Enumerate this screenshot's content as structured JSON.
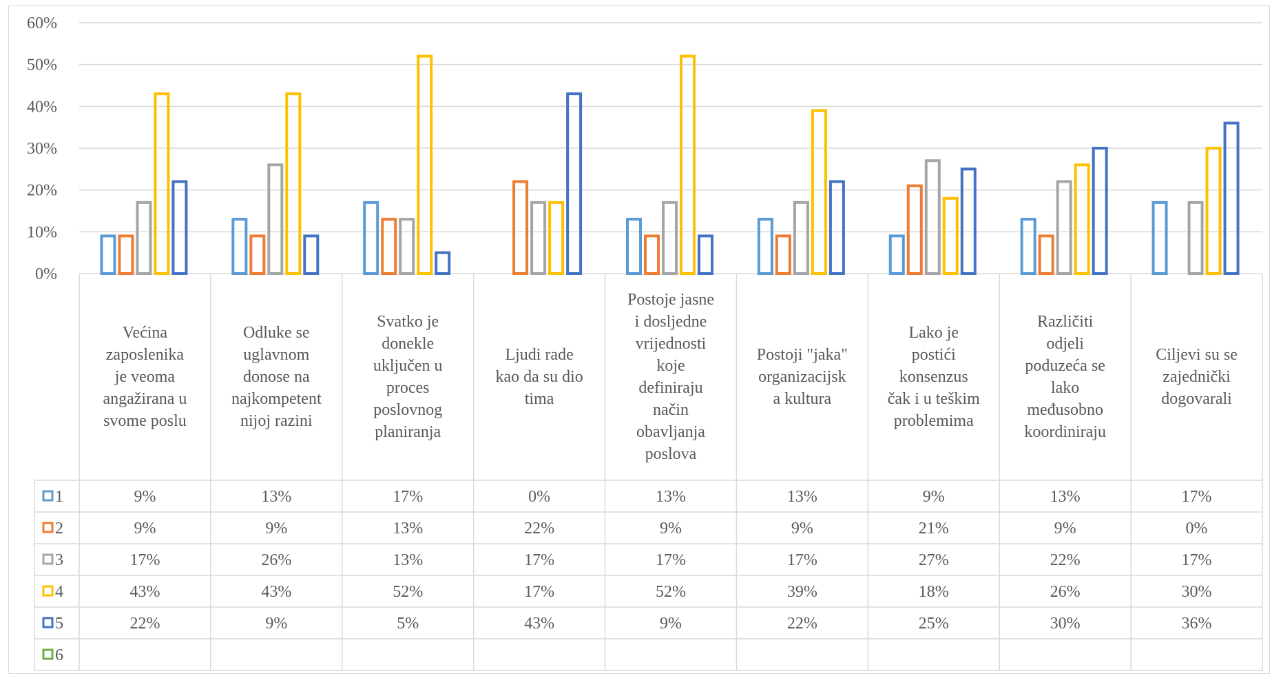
{
  "chart_data": {
    "type": "bar",
    "title": "",
    "xlabel": "",
    "ylabel": "",
    "ylim": [
      0,
      0.6
    ],
    "yticks": [
      "0%",
      "10%",
      "20%",
      "30%",
      "40%",
      "50%",
      "60%"
    ],
    "grid": true,
    "legend": "data-table-left",
    "bar_style": "outline",
    "categories": [
      "Većina\nzaposlenika\nje veoma\nangažirana u\nsvome poslu",
      "Odluke se\nuglavnom\ndonose na\nnajkompetent\nnijoj razini",
      "Svatko je\ndonekle\nuključen u\nproces\nposlovnog\nplaniranja",
      "Ljudi rade\nkao da su dio\ntima",
      "Postoje jasne\ni dosljedne\nvrijednosti\nkoje\ndefiniraju\nnačin\nobavljanja\nposlova",
      "Postoji \"jaka\"\norganizacijsk\na kultura",
      "Lako je\npostići\nkonsenzus\nčak i u teškim\nproblemima",
      "Različiti\nodjeli\npoduzeća se\nlako\nmeđusobno\nkoordiniraju",
      "Ciljevi su se\nzajednički\ndogovarali"
    ],
    "series": [
      {
        "name": "1",
        "color": "#5b9bd5",
        "values": [
          0.09,
          0.13,
          0.17,
          0.0,
          0.13,
          0.13,
          0.09,
          0.13,
          0.17
        ],
        "labels": [
          "9%",
          "13%",
          "17%",
          "0%",
          "13%",
          "13%",
          "9%",
          "13%",
          "17%"
        ]
      },
      {
        "name": "2",
        "color": "#ed7d31",
        "values": [
          0.09,
          0.09,
          0.13,
          0.22,
          0.09,
          0.09,
          0.21,
          0.09,
          0.0
        ],
        "labels": [
          "9%",
          "9%",
          "13%",
          "22%",
          "9%",
          "9%",
          "21%",
          "9%",
          "0%"
        ]
      },
      {
        "name": "3",
        "color": "#a5a5a5",
        "values": [
          0.17,
          0.26,
          0.13,
          0.17,
          0.17,
          0.17,
          0.27,
          0.22,
          0.17
        ],
        "labels": [
          "17%",
          "26%",
          "13%",
          "17%",
          "17%",
          "17%",
          "27%",
          "22%",
          "17%"
        ]
      },
      {
        "name": "4",
        "color": "#ffc000",
        "values": [
          0.43,
          0.43,
          0.52,
          0.17,
          0.52,
          0.39,
          0.18,
          0.26,
          0.3
        ],
        "labels": [
          "43%",
          "43%",
          "52%",
          "17%",
          "52%",
          "39%",
          "18%",
          "26%",
          "30%"
        ]
      },
      {
        "name": "5",
        "color": "#4472c4",
        "values": [
          0.22,
          0.09,
          0.05,
          0.43,
          0.09,
          0.22,
          0.25,
          0.3,
          0.36
        ],
        "labels": [
          "22%",
          "9%",
          "5%",
          "43%",
          "9%",
          "22%",
          "25%",
          "30%",
          "36%"
        ]
      },
      {
        "name": "6",
        "color": "#70ad47",
        "values": [
          null,
          null,
          null,
          null,
          null,
          null,
          null,
          null,
          null
        ],
        "labels": [
          "",
          "",
          "",
          "",
          "",
          "",
          "",
          "",
          ""
        ]
      }
    ]
  }
}
